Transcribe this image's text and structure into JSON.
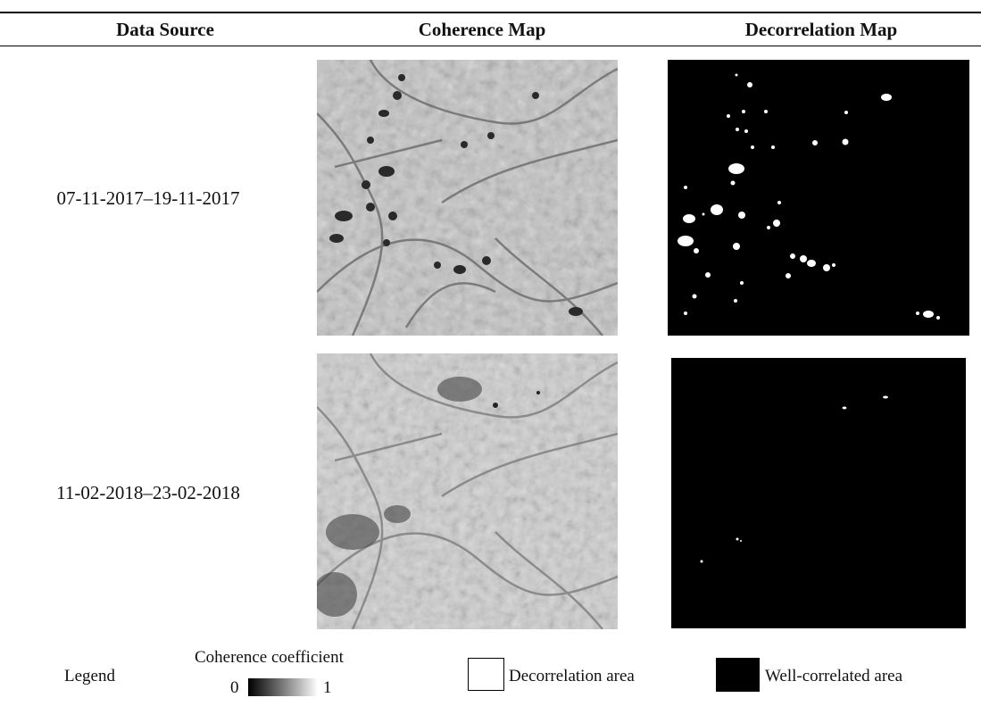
{
  "headers": {
    "source": "Data Source",
    "coherence": "Coherence Map",
    "decorrelation": "Decorrelation Map"
  },
  "rows": [
    {
      "label": "07-11-2017–19-11-2017"
    },
    {
      "label": "11-02-2018–23-02-2018"
    }
  ],
  "legend": {
    "title": "Legend",
    "coherence_title": "Coherence coefficient",
    "scale_min": "0",
    "scale_max": "1",
    "decorrelation_label": "Decorrelation area",
    "well_correlated_label": "Well-correlated area"
  },
  "colors": {
    "decorrelation_swatch": "#ffffff",
    "well_correlated_swatch": "#000000",
    "decorrelation_map_bg": "#000000"
  }
}
